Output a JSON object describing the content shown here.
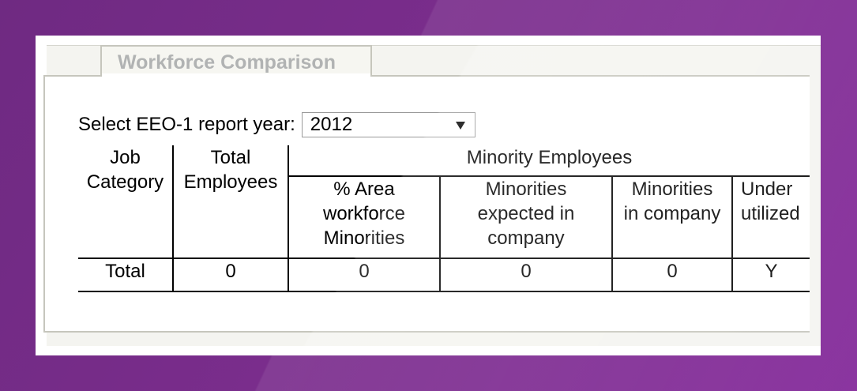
{
  "tab": {
    "label": "Workforce Comparison"
  },
  "year_selector": {
    "label": "Select EEO-1 report year:",
    "selected": "2012"
  },
  "table": {
    "headers": {
      "job_category": [
        "Job",
        "Category"
      ],
      "total_employees": [
        "Total",
        "Employees"
      ],
      "minority_group": "Minority Employees",
      "area_workforce": [
        "% Area",
        "workforce",
        "Minorities"
      ],
      "expected": [
        "Minorities",
        "expected in",
        "company"
      ],
      "in_company": [
        "Minorities",
        "in company"
      ],
      "underutilized": [
        "Under",
        "utilized"
      ]
    },
    "rows": [
      {
        "category": "Total",
        "total_employees": "0",
        "area_workforce": "0",
        "expected": "0",
        "in_company": "0",
        "underutilized": "Y"
      }
    ]
  }
}
